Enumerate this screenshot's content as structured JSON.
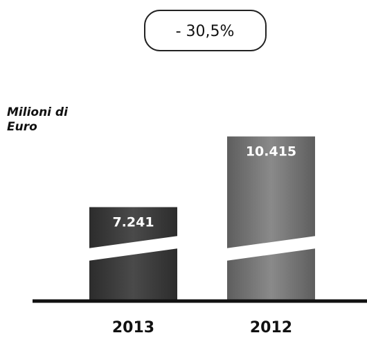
{
  "chart_data": {
    "type": "bar",
    "categories": [
      "2013",
      "2012"
    ],
    "values": [
      7241,
      10415
    ],
    "value_labels": [
      "7.241",
      "10.415"
    ],
    "ylabel": "Milioni di Euro",
    "axis_break": true,
    "annotation": "- 30,5%",
    "colors": {
      "bar_2013": "#3a3a3a",
      "bar_2012": "#6e6e6e"
    }
  }
}
